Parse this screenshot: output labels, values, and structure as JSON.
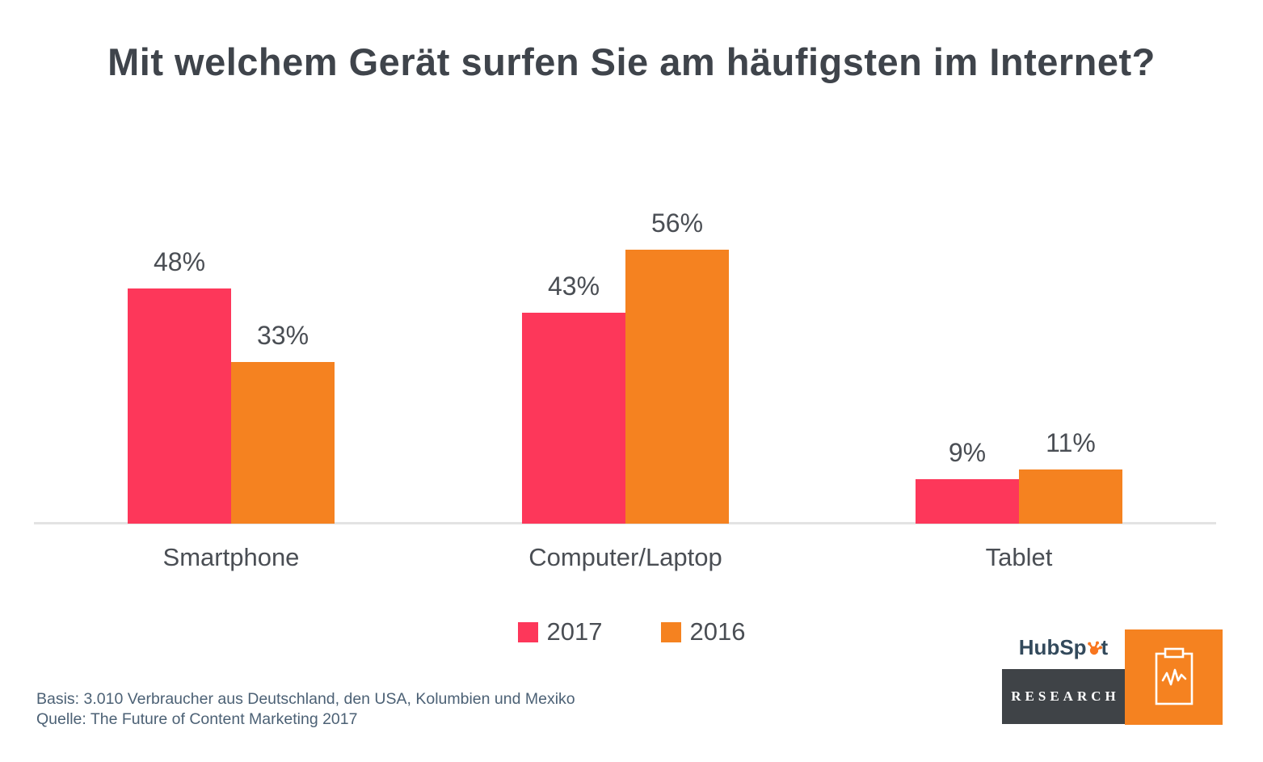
{
  "title": "Mit welchem Gerät surfen Sie am häufigsten im Internet?",
  "chart_data": {
    "type": "bar",
    "categories": [
      "Smartphone",
      "Computer/Laptop",
      "Tablet"
    ],
    "series": [
      {
        "name": "2017",
        "color": "#FD375A",
        "values": [
          48,
          43,
          9
        ]
      },
      {
        "name": "2016",
        "color": "#F58220",
        "values": [
          33,
          56,
          11
        ]
      }
    ],
    "value_format": "{v}%",
    "data_labels": true,
    "ylim": [
      0,
      60
    ],
    "grid": false,
    "axis_ticks": false,
    "legend_position": "bottom"
  },
  "legend": {
    "items": [
      {
        "label": "2017",
        "color": "#FD375A"
      },
      {
        "label": "2016",
        "color": "#F58220"
      }
    ]
  },
  "footer": {
    "basis": "Basis: 3.010 Verbraucher aus Deutschland, den USA, Kolumbien und Mexiko",
    "quelle": "Quelle: The Future of Content Marketing 2017"
  },
  "branding": {
    "wordmark_before": "HubSp",
    "wordmark_after": "t",
    "research_label": "RESEARCH",
    "wordmark_color": "#334A5C",
    "sprocket_color": "#F8761F",
    "research_box_color": "#3F4347",
    "clipboard_box_color": "#F58220"
  },
  "colors": {
    "title_text": "#3F444B",
    "label_text": "#4A4E54",
    "footer_text": "#4C6175",
    "axis_line": "#E3E3E3",
    "background": "#FFFFFF"
  }
}
